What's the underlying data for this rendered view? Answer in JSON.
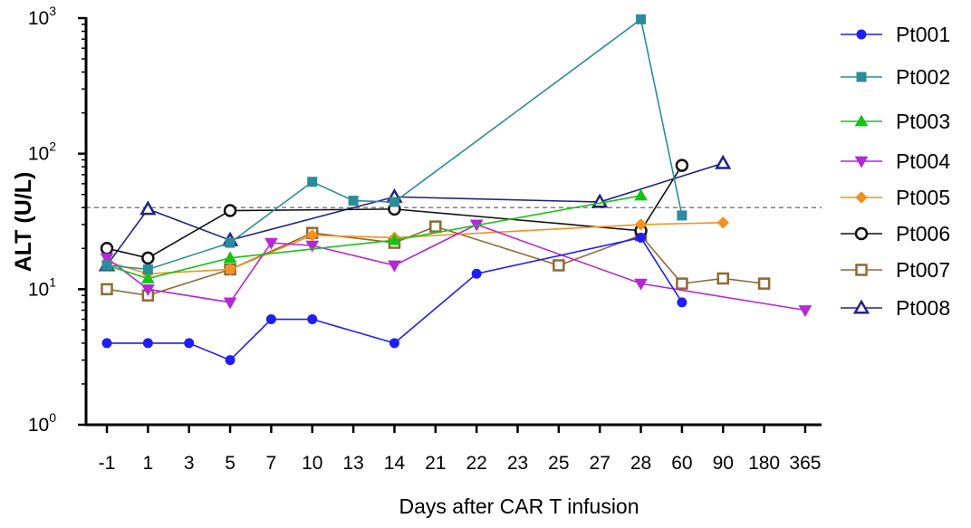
{
  "chart_data": {
    "type": "line",
    "title": "",
    "xlabel": "Days after CAR T infusion",
    "ylabel": "ALT (U/L)",
    "yscale": "log",
    "ylim": [
      1,
      1000
    ],
    "yticks": [
      {
        "base": "10",
        "exp": "0"
      },
      {
        "base": "10",
        "exp": "1"
      },
      {
        "base": "10",
        "exp": "2"
      },
      {
        "base": "10",
        "exp": "3"
      }
    ],
    "categories": [
      "-1",
      "1",
      "3",
      "5",
      "7",
      "10",
      "13",
      "14",
      "21",
      "22",
      "23",
      "25",
      "27",
      "28",
      "60",
      "90",
      "180",
      "365"
    ],
    "reference_line": {
      "y": 40,
      "style": "dashed",
      "color": "#808080"
    },
    "legend_position": "right",
    "series": [
      {
        "name": "Pt001",
        "color": "#1f1ff5",
        "marker": "circle",
        "filled": true,
        "x": [
          "-1",
          "1",
          "3",
          "5",
          "7",
          "10",
          "14",
          "22",
          "28",
          "60"
        ],
        "y": [
          4,
          4,
          4,
          3,
          6,
          6,
          4,
          13,
          24,
          8
        ]
      },
      {
        "name": "Pt002",
        "color": "#2b8c9c",
        "marker": "square",
        "filled": true,
        "x": [
          "-1",
          "1",
          "5",
          "10",
          "13",
          "14",
          "28",
          "60"
        ],
        "y": [
          15,
          14,
          22,
          62,
          45,
          44,
          980,
          35
        ]
      },
      {
        "name": "Pt003",
        "color": "#16c416",
        "marker": "triangle-up",
        "filled": true,
        "x": [
          "-1",
          "1",
          "5",
          "14",
          "28"
        ],
        "y": [
          15,
          12,
          17,
          23,
          49
        ]
      },
      {
        "name": "Pt004",
        "color": "#b428d8",
        "marker": "triangle-down",
        "filled": true,
        "x": [
          "-1",
          "1",
          "5",
          "7",
          "10",
          "14",
          "22",
          "28",
          "365"
        ],
        "y": [
          17,
          10,
          8,
          22,
          21,
          15,
          30,
          11,
          7
        ]
      },
      {
        "name": "Pt005",
        "color": "#f5901e",
        "marker": "diamond",
        "filled": true,
        "x": [
          "-1",
          "1",
          "5",
          "10",
          "14",
          "28",
          "90"
        ],
        "y": [
          16,
          13,
          14,
          25,
          24,
          30,
          31
        ]
      },
      {
        "name": "Pt006",
        "color": "#111111",
        "marker": "circle",
        "filled": false,
        "x": [
          "-1",
          "1",
          "5",
          "14",
          "28",
          "60"
        ],
        "y": [
          20,
          17,
          38,
          39,
          27,
          82
        ]
      },
      {
        "name": "Pt007",
        "color": "#8f6a35",
        "marker": "square",
        "filled": false,
        "x": [
          "-1",
          "1",
          "5",
          "10",
          "14",
          "21",
          "25",
          "28",
          "60",
          "90",
          "180"
        ],
        "y": [
          10,
          9,
          14,
          26,
          22,
          29,
          15,
          25,
          11,
          12,
          11
        ]
      },
      {
        "name": "Pt008",
        "color": "#232380",
        "marker": "triangle-up",
        "filled": false,
        "x": [
          "-1",
          "1",
          "5",
          "14",
          "27",
          "90"
        ],
        "y": [
          15,
          39,
          23,
          48,
          44,
          85
        ]
      }
    ]
  }
}
